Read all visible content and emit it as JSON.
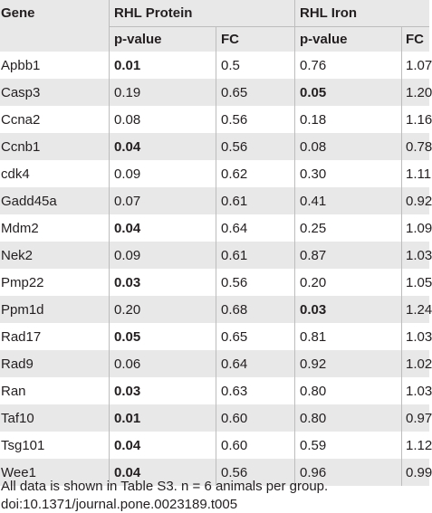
{
  "table": {
    "header": {
      "gene": "Gene",
      "group1": "RHL Protein",
      "group2": "RHL Iron",
      "pvalue": "p-value",
      "fc": "FC"
    },
    "rows": [
      {
        "gene": "Apbb1",
        "protein_p": "0.01",
        "protein_p_bold": true,
        "protein_fc": "0.5",
        "iron_p": "0.76",
        "iron_p_bold": false,
        "iron_fc": "1.07"
      },
      {
        "gene": "Casp3",
        "protein_p": "0.19",
        "protein_p_bold": false,
        "protein_fc": "0.65",
        "iron_p": "0.05",
        "iron_p_bold": true,
        "iron_fc": "1.20"
      },
      {
        "gene": "Ccna2",
        "protein_p": "0.08",
        "protein_p_bold": false,
        "protein_fc": "0.56",
        "iron_p": "0.18",
        "iron_p_bold": false,
        "iron_fc": "1.16"
      },
      {
        "gene": "Ccnb1",
        "protein_p": "0.04",
        "protein_p_bold": true,
        "protein_fc": "0.56",
        "iron_p": "0.08",
        "iron_p_bold": false,
        "iron_fc": "0.78"
      },
      {
        "gene": "cdk4",
        "protein_p": "0.09",
        "protein_p_bold": false,
        "protein_fc": "0.62",
        "iron_p": "0.30",
        "iron_p_bold": false,
        "iron_fc": "1.11"
      },
      {
        "gene": "Gadd45a",
        "protein_p": "0.07",
        "protein_p_bold": false,
        "protein_fc": "0.61",
        "iron_p": "0.41",
        "iron_p_bold": false,
        "iron_fc": "0.92"
      },
      {
        "gene": "Mdm2",
        "protein_p": "0.04",
        "protein_p_bold": true,
        "protein_fc": "0.64",
        "iron_p": "0.25",
        "iron_p_bold": false,
        "iron_fc": "1.09"
      },
      {
        "gene": "Nek2",
        "protein_p": "0.09",
        "protein_p_bold": false,
        "protein_fc": "0.61",
        "iron_p": "0.87",
        "iron_p_bold": false,
        "iron_fc": "1.03"
      },
      {
        "gene": "Pmp22",
        "protein_p": "0.03",
        "protein_p_bold": true,
        "protein_fc": "0.56",
        "iron_p": "0.20",
        "iron_p_bold": false,
        "iron_fc": "1.05"
      },
      {
        "gene": "Ppm1d",
        "protein_p": "0.20",
        "protein_p_bold": false,
        "protein_fc": "0.68",
        "iron_p": "0.03",
        "iron_p_bold": true,
        "iron_fc": "1.24"
      },
      {
        "gene": "Rad17",
        "protein_p": "0.05",
        "protein_p_bold": true,
        "protein_fc": "0.65",
        "iron_p": "0.81",
        "iron_p_bold": false,
        "iron_fc": "1.03"
      },
      {
        "gene": "Rad9",
        "protein_p": "0.06",
        "protein_p_bold": false,
        "protein_fc": "0.64",
        "iron_p": "0.92",
        "iron_p_bold": false,
        "iron_fc": "1.02"
      },
      {
        "gene": "Ran",
        "protein_p": "0.03",
        "protein_p_bold": true,
        "protein_fc": "0.63",
        "iron_p": "0.80",
        "iron_p_bold": false,
        "iron_fc": "1.03"
      },
      {
        "gene": "Taf10",
        "protein_p": "0.01",
        "protein_p_bold": true,
        "protein_fc": "0.60",
        "iron_p": "0.80",
        "iron_p_bold": false,
        "iron_fc": "0.97"
      },
      {
        "gene": "Tsg101",
        "protein_p": "0.04",
        "protein_p_bold": true,
        "protein_fc": "0.60",
        "iron_p": "0.59",
        "iron_p_bold": false,
        "iron_fc": "1.12"
      },
      {
        "gene": "Wee1",
        "protein_p": "0.04",
        "protein_p_bold": true,
        "protein_fc": "0.56",
        "iron_p": "0.96",
        "iron_p_bold": false,
        "iron_fc": "0.99"
      }
    ]
  },
  "footnote": {
    "line1": "All data is shown in Table S3. n = 6 animals per group.",
    "line2": "doi:10.1371/journal.pone.0023189.t005"
  }
}
